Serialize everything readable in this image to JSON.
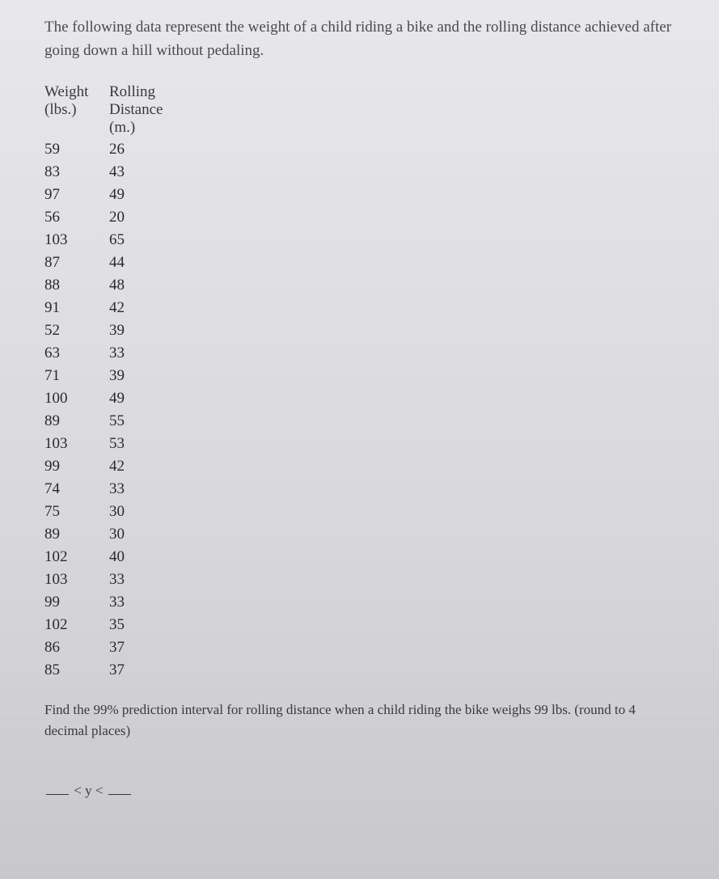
{
  "intro": "The following data represent the weight of a child riding a bike and the rolling distance achieved after going down a hill without pedaling.",
  "table": {
    "headers": {
      "weight_line1": "Weight",
      "weight_line2": "(lbs.)",
      "rolling_line1": "Rolling",
      "rolling_line2": "Distance",
      "rolling_line3": "(m.)"
    },
    "rows": [
      {
        "weight": "59",
        "distance": "26"
      },
      {
        "weight": "83",
        "distance": "43"
      },
      {
        "weight": "97",
        "distance": "49"
      },
      {
        "weight": "56",
        "distance": "20"
      },
      {
        "weight": "103",
        "distance": "65"
      },
      {
        "weight": "87",
        "distance": "44"
      },
      {
        "weight": "88",
        "distance": "48"
      },
      {
        "weight": "91",
        "distance": "42"
      },
      {
        "weight": "52",
        "distance": "39"
      },
      {
        "weight": "63",
        "distance": "33"
      },
      {
        "weight": "71",
        "distance": "39"
      },
      {
        "weight": "100",
        "distance": "49"
      },
      {
        "weight": "89",
        "distance": "55"
      },
      {
        "weight": "103",
        "distance": "53"
      },
      {
        "weight": "99",
        "distance": "42"
      },
      {
        "weight": "74",
        "distance": "33"
      },
      {
        "weight": "75",
        "distance": "30"
      },
      {
        "weight": "89",
        "distance": "30"
      },
      {
        "weight": "102",
        "distance": "40"
      },
      {
        "weight": "103",
        "distance": "33"
      },
      {
        "weight": "99",
        "distance": "33"
      },
      {
        "weight": "102",
        "distance": "35"
      },
      {
        "weight": "86",
        "distance": "37"
      },
      {
        "weight": "85",
        "distance": "37"
      }
    ]
  },
  "question": "Find the 99% prediction interval for rolling distance when a child riding the bike weighs 99 lbs. (round to 4 decimal places)",
  "answer_relation": "< y <",
  "colors": {
    "text": "#3a3a3c",
    "background_top": "#e8e8ea",
    "background_bottom": "#c8c8ca"
  },
  "typography": {
    "body_fontsize": 19,
    "question_fontsize": 17,
    "font_family": "Georgia, serif"
  }
}
